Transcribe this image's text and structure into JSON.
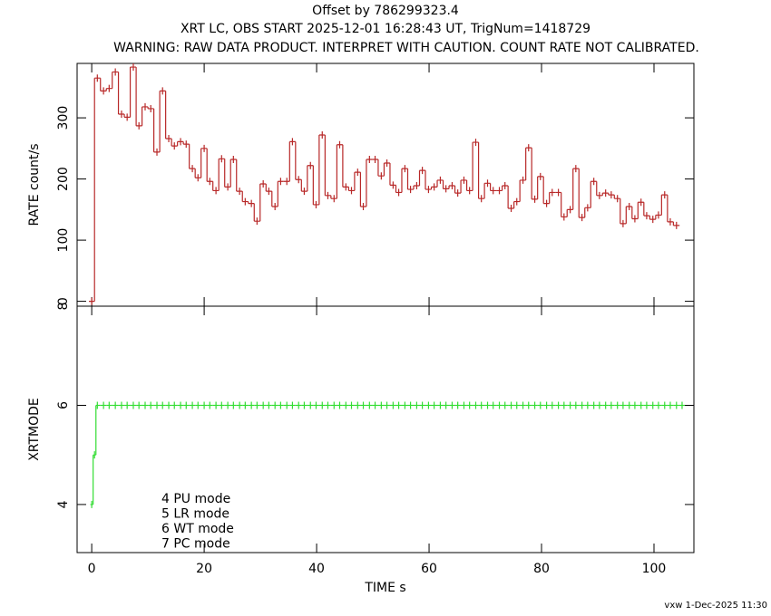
{
  "chart_data": [
    {
      "type": "step",
      "title": "Offset by 786299323.4",
      "subtitle": "XRT LC, OBS START 2025-12-01 16:28:43 UT, TrigNum=1418729",
      "note": "WARNING: RAW DATA PRODUCT. INTERPRET WITH CAUTION. COUNT RATE NOT CALIBRATED.",
      "ylabel": "RATE  count/s",
      "xlim": [
        -2.6,
        107.1
      ],
      "ylim": [
        -8,
        389
      ],
      "yticks": [
        0,
        100,
        200,
        300
      ],
      "series": [
        {
          "name": "RATE",
          "color": "#b82828",
          "x": [
            0,
            1.0,
            2.1,
            3.1,
            4.2,
            5.3,
            6.3,
            7.4,
            8.4,
            9.5,
            10.5,
            11.6,
            12.6,
            13.7,
            14.7,
            15.8,
            16.8,
            17.9,
            18.9,
            20.0,
            21.0,
            22.1,
            23.1,
            24.2,
            25.2,
            26.3,
            27.3,
            28.4,
            29.4,
            30.5,
            31.5,
            32.6,
            33.6,
            34.7,
            35.7,
            36.8,
            37.8,
            38.9,
            39.9,
            41.0,
            42.0,
            43.1,
            44.1,
            45.2,
            46.2,
            47.3,
            48.3,
            49.4,
            50.4,
            51.5,
            52.5,
            53.6,
            54.6,
            55.7,
            56.7,
            57.8,
            58.8,
            59.9,
            60.9,
            62.0,
            63.0,
            64.1,
            65.1,
            66.2,
            67.2,
            68.3,
            69.3,
            70.4,
            71.4,
            72.5,
            73.5,
            74.6,
            75.6,
            76.7,
            77.7,
            78.8,
            79.8,
            80.9,
            81.9,
            83.0,
            84.0,
            85.1,
            86.1,
            87.2,
            88.2,
            89.3,
            90.3,
            91.4,
            92.4,
            93.5,
            94.5,
            95.6,
            96.6,
            97.7,
            98.7,
            99.8,
            100.8,
            101.9,
            102.9,
            104.0
          ],
          "values": [
            0,
            365,
            344,
            348,
            375,
            306,
            301,
            383,
            287,
            318,
            315,
            244,
            344,
            266,
            254,
            261,
            257,
            217,
            202,
            250,
            196,
            181,
            233,
            187,
            232,
            180,
            163,
            160,
            131,
            192,
            180,
            155,
            196,
            196,
            261,
            199,
            180,
            222,
            158,
            272,
            173,
            168,
            256,
            187,
            181,
            211,
            155,
            232,
            232,
            205,
            226,
            190,
            178,
            217,
            183,
            189,
            214,
            183,
            187,
            198,
            184,
            189,
            177,
            198,
            181,
            260,
            168,
            193,
            181,
            181,
            189,
            152,
            163,
            198,
            251,
            167,
            204,
            160,
            178,
            178,
            138,
            150,
            217,
            137,
            153,
            196,
            173,
            177,
            174,
            168,
            127,
            155,
            135,
            162,
            140,
            134,
            141,
            174,
            130,
            124
          ]
        }
      ]
    },
    {
      "type": "step",
      "ylabel": "XRTMODE",
      "xlabel": "TIME  s",
      "xlim": [
        -2.6,
        107.1
      ],
      "ylim": [
        3.03,
        8
      ],
      "xticks": [
        0,
        20,
        40,
        60,
        80,
        100
      ],
      "yticks": [
        4,
        6,
        8
      ],
      "annotations": [
        "4 PU mode",
        "5 LR mode",
        "6 WT mode",
        "7 PC mode"
      ],
      "series": [
        {
          "name": "XRTMODE",
          "color": "#33dd33",
          "x": [
            0,
            0.5,
            1.0,
            2.1,
            3.1,
            4.2,
            5.3,
            6.3,
            7.4,
            8.4,
            9.5,
            10.5,
            11.6,
            12.6,
            13.7,
            14.7,
            15.8,
            16.8,
            17.9,
            18.9,
            20.0,
            21.0,
            22.1,
            23.1,
            24.2,
            25.2,
            26.3,
            27.3,
            28.4,
            29.4,
            30.5,
            31.5,
            32.6,
            33.6,
            34.7,
            35.7,
            36.8,
            37.8,
            38.9,
            39.9,
            41.0,
            42.0,
            43.1,
            44.1,
            45.2,
            46.2,
            47.3,
            48.3,
            49.4,
            50.4,
            51.5,
            52.5,
            53.6,
            54.6,
            55.7,
            56.7,
            57.8,
            58.8,
            59.9,
            60.9,
            62.0,
            63.0,
            64.1,
            65.1,
            66.2,
            67.2,
            68.3,
            69.3,
            70.4,
            71.4,
            72.5,
            73.5,
            74.6,
            75.6,
            76.7,
            77.7,
            78.8,
            79.8,
            80.9,
            81.9,
            83.0,
            84.0,
            85.1,
            86.1,
            87.2,
            88.2,
            89.3,
            90.3,
            91.4,
            92.4,
            93.5,
            94.5,
            95.6,
            96.6,
            97.7,
            98.7,
            99.8,
            100.8,
            101.9,
            102.9,
            104.0,
            105.0
          ],
          "values": [
            4,
            5,
            6,
            6,
            6,
            6,
            6,
            6,
            6,
            6,
            6,
            6,
            6,
            6,
            6,
            6,
            6,
            6,
            6,
            6,
            6,
            6,
            6,
            6,
            6,
            6,
            6,
            6,
            6,
            6,
            6,
            6,
            6,
            6,
            6,
            6,
            6,
            6,
            6,
            6,
            6,
            6,
            6,
            6,
            6,
            6,
            6,
            6,
            6,
            6,
            6,
            6,
            6,
            6,
            6,
            6,
            6,
            6,
            6,
            6,
            6,
            6,
            6,
            6,
            6,
            6,
            6,
            6,
            6,
            6,
            6,
            6,
            6,
            6,
            6,
            6,
            6,
            6,
            6,
            6,
            6,
            6,
            6,
            6,
            6,
            6,
            6,
            6,
            6,
            6,
            6,
            6,
            6,
            6,
            6,
            6,
            6,
            6,
            6,
            6,
            6,
            6
          ]
        }
      ]
    }
  ],
  "footer": "vxw  1-Dec-2025 11:30"
}
